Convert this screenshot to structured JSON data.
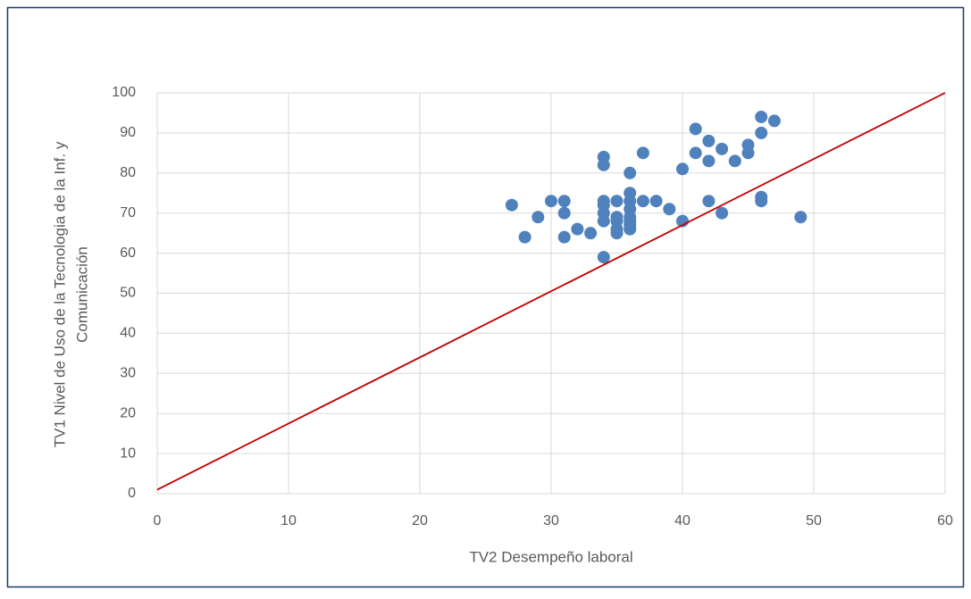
{
  "chart_data": {
    "type": "scatter",
    "xlabel": "TV2 Desempeño laboral",
    "ylabel": [
      "TV1 Nivel de Uso de la Tecnologia de la Inf. y",
      "Comunicación"
    ],
    "xlim": [
      0,
      60
    ],
    "ylim": [
      0,
      100
    ],
    "xticks": [
      0,
      10,
      20,
      30,
      40,
      50,
      60
    ],
    "yticks": [
      0,
      10,
      20,
      30,
      40,
      50,
      60,
      70,
      80,
      90,
      100
    ],
    "grid": true,
    "series": [
      {
        "color": "#4f81bd",
        "x": [
          27,
          28,
          29,
          30,
          31,
          31,
          31,
          32,
          33,
          34,
          34,
          34,
          34,
          34,
          34,
          34,
          35,
          35,
          35,
          35,
          35,
          36,
          36,
          36,
          36,
          36,
          36,
          36,
          36,
          37,
          37,
          38,
          39,
          40,
          40,
          41,
          41,
          42,
          42,
          42,
          43,
          43,
          44,
          45,
          45,
          46,
          46,
          46,
          46,
          47,
          49
        ],
        "values": [
          72,
          64,
          69,
          73,
          73,
          70,
          64,
          66,
          65,
          84,
          82,
          73,
          72,
          70,
          68,
          59,
          73,
          69,
          68,
          66,
          65,
          80,
          75,
          73,
          71,
          69,
          68,
          67,
          66,
          85,
          73,
          73,
          71,
          81,
          68,
          91,
          85,
          88,
          83,
          73,
          86,
          70,
          83,
          87,
          85,
          94,
          90,
          74,
          73,
          93,
          69
        ]
      }
    ],
    "line": {
      "color": "#c00000",
      "x": [
        0,
        60
      ],
      "y": [
        1,
        100
      ]
    }
  }
}
